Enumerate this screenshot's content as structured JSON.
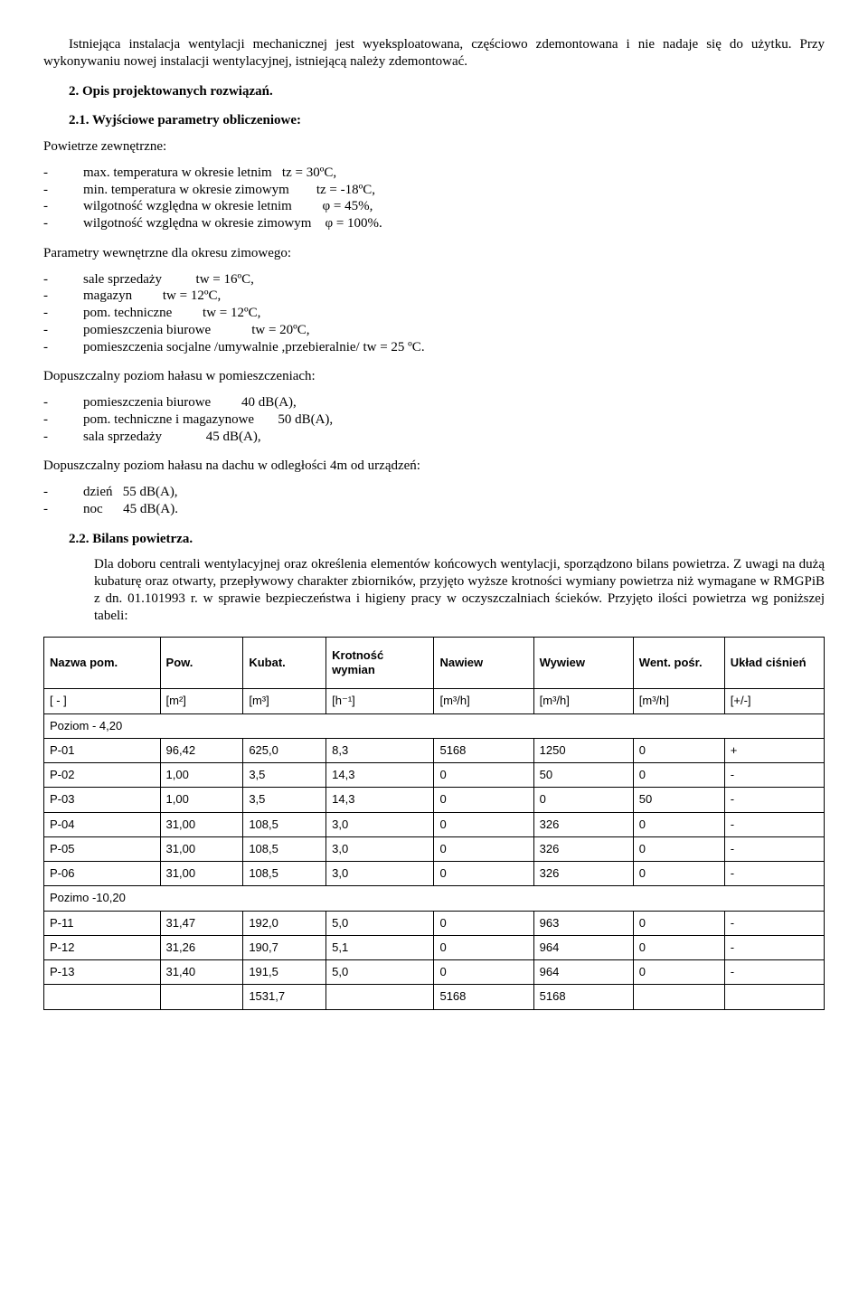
{
  "intro_para": "Istniejąca instalacja wentylacji mechanicznej jest wyeksploatowana, częściowo zdemontowana i nie nadaje się do użytku. Przy wykonywaniu nowej instalacji wentylacyjnej, istniejącą należy zdemontować.",
  "section2": "2.    Opis projektowanych rozwiązań.",
  "section21": "2.1. Wyjściowe parametry obliczeniowe:",
  "ext_label": "Powietrze zewnętrzne:",
  "ext_lines": [
    "max. temperatura w okresie letnim   tz = 30ºC,",
    "min. temperatura w okresie zimowym        tz = -18ºC,",
    "wilgotność względna w okresie letnim         φ = 45%,",
    "wilgotność względna w okresie zimowym    φ = 100%."
  ],
  "int_label": "Parametry wewnętrzne dla okresu zimowego:",
  "int_lines": [
    "sale sprzedaży          tw = 16ºC,",
    "magazyn         tw = 12ºC,",
    "pom. techniczne         tw = 12ºC,",
    "pomieszczenia biurowe            tw = 20ºC,",
    "pomieszczenia socjalne /umywalnie ,przebieralnie/ tw = 25 ºC."
  ],
  "noise1_label": "Dopuszczalny poziom hałasu w pomieszczeniach:",
  "noise1_lines": [
    "pomieszczenia biurowe         40 dB(A),",
    "pom. techniczne i magazynowe       50 dB(A),",
    "sala sprzedaży             45 dB(A),"
  ],
  "noise2_label": "Dopuszczalny poziom hałasu na dachu w odległości 4m od urządzeń:",
  "noise2_lines": [
    "dzień   55 dB(A),",
    "noc      45 dB(A)."
  ],
  "section22": "2.2. Bilans powietrza.",
  "bilans_para": "Dla doboru centrali wentylacyjnej oraz określenia elementów końcowych wentylacji, sporządzono bilans powietrza. Z uwagi na dużą kubaturę oraz otwarty, przepływowy charakter zbiorników, przyjęto wyższe krotności wymiany powietrza niż wymagane w RMGPiB z dn. 01.101993 r. w sprawie bezpieczeństwa i higieny pracy w oczyszczalniach ścieków. Przyjęto ilości powietrza wg poniższej tabeli:",
  "table": {
    "columns": [
      "Nazwa pom.",
      "Pow.",
      "Kubat.",
      "Krotność wymian",
      "Nawiew",
      "Wywiew",
      "Went. pośr.",
      "Układ ciśnień"
    ],
    "units": [
      "[ - ]",
      "[m²]",
      "[m³]",
      "[h⁻¹]",
      "[m³/h]",
      "[m³/h]",
      "[m³/h]",
      "[+/-]"
    ],
    "rows": [
      {
        "span": true,
        "cells": [
          "Poziom - 4,20",
          "",
          "",
          "",
          "",
          "",
          "",
          ""
        ]
      },
      {
        "cells": [
          "P-01",
          "96,42",
          "625,0",
          "8,3",
          "5168",
          "1250",
          "0",
          "+"
        ]
      },
      {
        "cells": [
          "P-02",
          "1,00",
          "3,5",
          "14,3",
          "0",
          "50",
          "0",
          "-"
        ]
      },
      {
        "cells": [
          "P-03",
          "1,00",
          "3,5",
          "14,3",
          "0",
          "0",
          "50",
          "-"
        ]
      },
      {
        "cells": [
          "P-04",
          "31,00",
          "108,5",
          "3,0",
          "0",
          "326",
          "0",
          "-"
        ]
      },
      {
        "cells": [
          "P-05",
          "31,00",
          "108,5",
          "3,0",
          "0",
          "326",
          "0",
          "-"
        ]
      },
      {
        "cells": [
          "P-06",
          "31,00",
          "108,5",
          "3,0",
          "0",
          "326",
          "0",
          "-"
        ]
      },
      {
        "span": true,
        "cells": [
          "Pozimo -10,20",
          "",
          "",
          "",
          "",
          "",
          "",
          ""
        ]
      },
      {
        "cells": [
          "P-11",
          "31,47",
          "192,0",
          "5,0",
          "0",
          "963",
          "0",
          "-"
        ]
      },
      {
        "cells": [
          "P-12",
          "31,26",
          "190,7",
          "5,1",
          "0",
          "964",
          "0",
          "-"
        ]
      },
      {
        "cells": [
          "P-13",
          "31,40",
          "191,5",
          "5,0",
          "0",
          "964",
          "0",
          "-"
        ]
      },
      {
        "cells": [
          "",
          "",
          "1531,7",
          "",
          "5168",
          "5168",
          "",
          ""
        ]
      }
    ],
    "col_widths": [
      "14%",
      "10%",
      "10%",
      "13%",
      "12%",
      "12%",
      "11%",
      "12%"
    ]
  }
}
